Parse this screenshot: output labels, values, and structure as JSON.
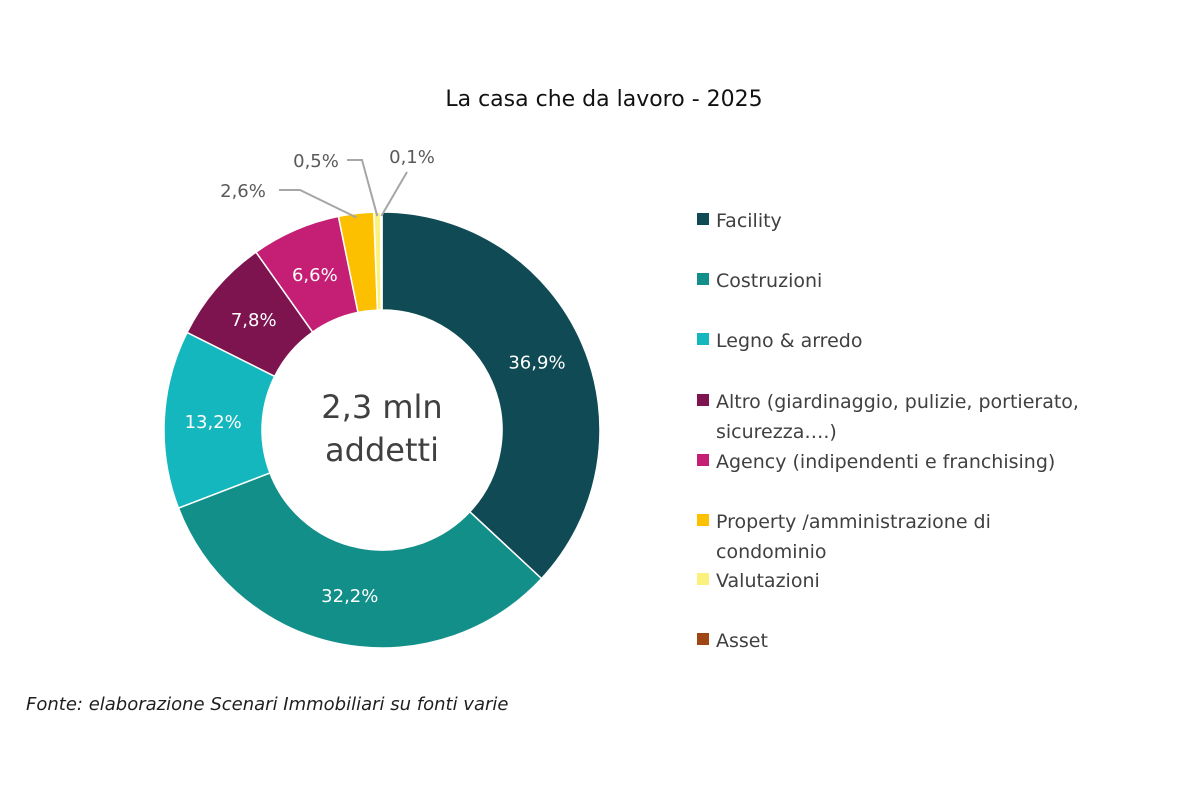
{
  "chart_data": {
    "type": "pie",
    "variant": "donut",
    "title": "La casa che da lavoro - 2025",
    "center_label": [
      "2,3 mln",
      "addetti"
    ],
    "legend_position": "right",
    "slices": [
      {
        "name": "Facility",
        "value": 36.9,
        "label": "36,9%",
        "color": "#0f4a55",
        "legend_lines": [
          "Facility"
        ]
      },
      {
        "name": "Costruzioni",
        "value": 32.2,
        "label": "32,2%",
        "color": "#138f8a",
        "legend_lines": [
          "Costruzioni"
        ]
      },
      {
        "name": "Legno & arredo",
        "value": 13.2,
        "label": "13,2%",
        "color": "#14b7bd",
        "legend_lines": [
          "Legno & arredo"
        ]
      },
      {
        "name": "Altro (giardinaggio, pulizie, portierato, sicurezza….)",
        "value": 7.8,
        "label": "7,8%",
        "color": "#7d1450",
        "legend_lines": [
          "Altro (giardinaggio, pulizie, portierato,",
          "sicurezza….)"
        ]
      },
      {
        "name": "Agency (indipendenti e franchising)",
        "value": 6.6,
        "label": "6,6%",
        "color": "#c41f74",
        "legend_lines": [
          "Agency (indipendenti e franchising)"
        ]
      },
      {
        "name": "Property /amministrazione di condominio",
        "value": 2.6,
        "label": "2,6%",
        "color": "#fcc000",
        "legend_lines": [
          "Property /amministrazione di",
          "condominio"
        ]
      },
      {
        "name": "Valutazioni",
        "value": 0.5,
        "label": "0,5%",
        "color": "#fbf27e",
        "legend_lines": [
          "Valutazioni"
        ]
      },
      {
        "name": "Asset",
        "value": 0.1,
        "label": "0,1%",
        "color": "#a04614",
        "legend_lines": [
          "Asset"
        ]
      }
    ]
  },
  "source_note": "Fonte: elaborazione Scenari Immobiliari su fonti varie"
}
